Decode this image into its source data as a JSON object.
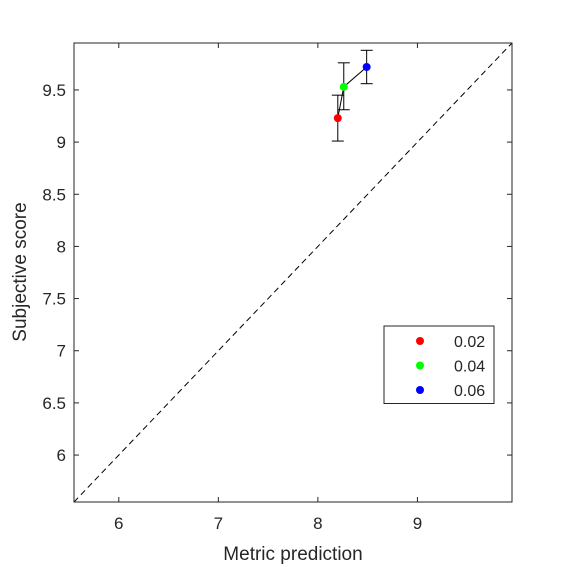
{
  "chart_data": {
    "type": "scatter",
    "xlabel": "Metric prediction",
    "ylabel": "Subjective score",
    "xlim": [
      5.55,
      9.95
    ],
    "ylim": [
      5.55,
      9.95
    ],
    "xticks": [
      6,
      7,
      8,
      9
    ],
    "yticks": [
      6,
      6.5,
      7,
      7.5,
      8,
      8.5,
      9,
      9.5
    ],
    "xtick_labels": [
      "6",
      "7",
      "8",
      "9"
    ],
    "ytick_labels": [
      "6",
      "6.5",
      "7",
      "7.5",
      "8",
      "8.5",
      "9",
      "9.5"
    ],
    "grid": false,
    "diagonal_reference": true,
    "connecting_line": true,
    "legend_position": "lower-right",
    "series": [
      {
        "name": "0.02",
        "color": "#ff0000",
        "x": 8.2,
        "y": 9.23,
        "err_low": 9.01,
        "err_high": 9.45
      },
      {
        "name": "0.04",
        "color": "#00ff00",
        "x": 8.26,
        "y": 9.53,
        "err_low": 9.31,
        "err_high": 9.76
      },
      {
        "name": "0.06",
        "color": "#0000ff",
        "x": 8.49,
        "y": 9.72,
        "err_low": 9.56,
        "err_high": 9.88
      }
    ]
  }
}
